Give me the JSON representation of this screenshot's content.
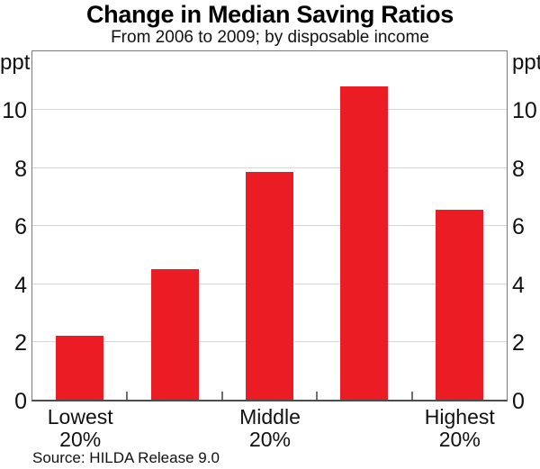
{
  "chart_data": {
    "type": "bar",
    "title": "Change in Median Saving Ratios",
    "subtitle": "From 2006 to 2009; by disposable income",
    "categories": [
      "Lowest\n20%",
      "",
      "Middle\n20%",
      "",
      "Highest\n20%"
    ],
    "values": [
      2.2,
      4.5,
      7.85,
      10.8,
      6.55
    ],
    "ylabel_left": "ppt",
    "ylabel_right": "ppt",
    "ylim": [
      0,
      12
    ],
    "yticks": [
      0,
      2,
      4,
      6,
      8,
      10
    ],
    "grid": true,
    "legend": "none",
    "bar_color": "#ec1c24",
    "grid_color": "#d7d7d7",
    "frame_color": "#7a7a7a",
    "baseline_color": "#4c4c4c",
    "tick_color": "#6f6f6f",
    "source": "Source: HILDA Release 9.0"
  }
}
